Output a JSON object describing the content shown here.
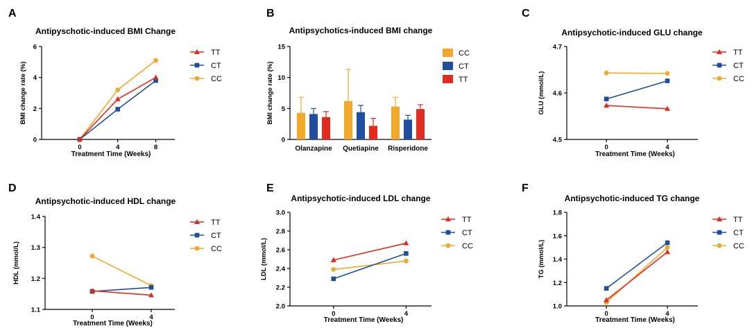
{
  "colors": {
    "TT": "#e02b20",
    "CT": "#1f4e9c",
    "CC": "#f0a92d"
  },
  "chart_data": [
    {
      "panel": "A",
      "type": "line",
      "title": "Antipyschotic-induced BMI Change",
      "xlabel": "Treatment Time (Weeks)",
      "ylabel": "BMI change rate (%)",
      "x": [
        0,
        4,
        8
      ],
      "xlim": [
        -4,
        10
      ],
      "xticks": [
        0,
        4,
        8
      ],
      "ylim": [
        0,
        6
      ],
      "yticks": [
        0,
        2,
        4,
        6
      ],
      "tick_labels_x": [
        "0",
        "4",
        "8"
      ],
      "tick_labels_y": [
        "0",
        "2",
        "4",
        "6"
      ],
      "series": [
        {
          "name": "TT",
          "marker": "triangle",
          "values": [
            0,
            2.6,
            4.0
          ]
        },
        {
          "name": "CT",
          "marker": "square",
          "values": [
            0,
            1.95,
            3.8
          ]
        },
        {
          "name": "CC",
          "marker": "circle",
          "values": [
            0,
            3.2,
            5.1
          ]
        }
      ],
      "legend": [
        "TT",
        "CT",
        "CC"
      ]
    },
    {
      "panel": "B",
      "type": "bar",
      "title": "Antipsychotics-induced BMI change",
      "xlabel": "",
      "ylabel": "BMI change rate (%)",
      "categories": [
        "Olanzapine",
        "Quetiapine",
        "Risperidone"
      ],
      "ylim": [
        0,
        15
      ],
      "yticks": [
        0,
        5,
        10,
        15
      ],
      "tick_labels_y": [
        "0",
        "5",
        "10",
        "15"
      ],
      "series": [
        {
          "name": "CC",
          "values": [
            4.3,
            6.2,
            5.3
          ],
          "errors": [
            2.5,
            5.1,
            1.5
          ]
        },
        {
          "name": "CT",
          "values": [
            4.1,
            4.4,
            3.2
          ],
          "errors": [
            0.9,
            1.1,
            0.7
          ]
        },
        {
          "name": "TT",
          "values": [
            3.6,
            2.2,
            4.9
          ],
          "errors": [
            0.9,
            1.2,
            0.7
          ]
        }
      ],
      "legend": [
        "CC",
        "CT",
        "TT"
      ]
    },
    {
      "panel": "C",
      "type": "line",
      "title": "Antipsychotic-induced GLU change",
      "xlabel": "Treatment Time (Weeks)",
      "ylabel": "GLU (mmol/L)",
      "x": [
        0,
        4
      ],
      "xlim": [
        -2.6,
        6
      ],
      "xticks": [
        0,
        4
      ],
      "ylim": [
        4.5,
        4.7
      ],
      "yticks": [
        4.5,
        4.6,
        4.7
      ],
      "tick_labels_x": [
        "0",
        "4"
      ],
      "tick_labels_y": [
        "4.5",
        "4.6",
        "4.7"
      ],
      "series": [
        {
          "name": "TT",
          "marker": "triangle",
          "values": [
            4.573,
            4.566
          ]
        },
        {
          "name": "CT",
          "marker": "square",
          "values": [
            4.587,
            4.626
          ]
        },
        {
          "name": "CC",
          "marker": "circle",
          "values": [
            4.643,
            4.642
          ]
        }
      ],
      "legend": [
        "TT",
        "CT",
        "CC"
      ]
    },
    {
      "panel": "D",
      "type": "line",
      "title": "Antipsychotic-induced HDL change",
      "xlabel": "Treatment Time (Weeks)",
      "ylabel": "HDL (mmol/L)",
      "x": [
        0,
        4
      ],
      "xlim": [
        -3.2,
        5.6
      ],
      "xticks": [
        0,
        4
      ],
      "ylim": [
        1.1,
        1.4
      ],
      "yticks": [
        1.1,
        1.2,
        1.3,
        1.4
      ],
      "tick_labels_x": [
        "0",
        "4"
      ],
      "tick_labels_y": [
        "1.1",
        "1.2",
        "1.3",
        "1.4"
      ],
      "series": [
        {
          "name": "TT",
          "marker": "triangle",
          "values": [
            1.16,
            1.146
          ]
        },
        {
          "name": "CT",
          "marker": "square",
          "values": [
            1.158,
            1.171
          ]
        },
        {
          "name": "CC",
          "marker": "circle",
          "values": [
            1.272,
            1.177
          ]
        }
      ],
      "legend": [
        "TT",
        "CT",
        "CC"
      ]
    },
    {
      "panel": "E",
      "type": "line",
      "title": "Antipsychotic-induced LDL change",
      "xlabel": "Treatment Time (Weeks)",
      "ylabel": "LDL (mmol/L)",
      "x": [
        0,
        4
      ],
      "xlim": [
        -2.4,
        5.4
      ],
      "xticks": [
        0,
        4
      ],
      "ylim": [
        2.0,
        3.0
      ],
      "yticks": [
        2.0,
        2.2,
        2.4,
        2.6,
        2.8,
        3.0
      ],
      "tick_labels_x": [
        "0",
        "4"
      ],
      "tick_labels_y": [
        "2.0",
        "2.2",
        "2.4",
        "2.6",
        "2.8",
        "3.0"
      ],
      "series": [
        {
          "name": "TT",
          "marker": "triangle",
          "values": [
            2.49,
            2.67
          ]
        },
        {
          "name": "CT",
          "marker": "square",
          "values": [
            2.29,
            2.56
          ]
        },
        {
          "name": "CC",
          "marker": "circle",
          "values": [
            2.39,
            2.48
          ]
        }
      ],
      "legend": [
        "TT",
        "CT",
        "CC"
      ]
    },
    {
      "panel": "F",
      "type": "line",
      "title": "Antipsychotic-induced TG change",
      "xlabel": "Treatment Time (Weeks)",
      "ylabel": "TG (mmol/L)",
      "x": [
        0,
        4
      ],
      "xlim": [
        -2.6,
        6
      ],
      "xticks": [
        0,
        4
      ],
      "ylim": [
        1.0,
        1.8
      ],
      "yticks": [
        1.0,
        1.2,
        1.4,
        1.6,
        1.8
      ],
      "tick_labels_x": [
        "0",
        "4"
      ],
      "tick_labels_y": [
        "1.0",
        "1.2",
        "1.4",
        "1.6",
        "1.8"
      ],
      "series": [
        {
          "name": "TT",
          "marker": "triangle",
          "values": [
            1.05,
            1.46
          ]
        },
        {
          "name": "CT",
          "marker": "square",
          "values": [
            1.15,
            1.54
          ]
        },
        {
          "name": "CC",
          "marker": "circle",
          "values": [
            1.03,
            1.5
          ]
        }
      ],
      "legend": [
        "TT",
        "CT",
        "CC"
      ]
    }
  ]
}
